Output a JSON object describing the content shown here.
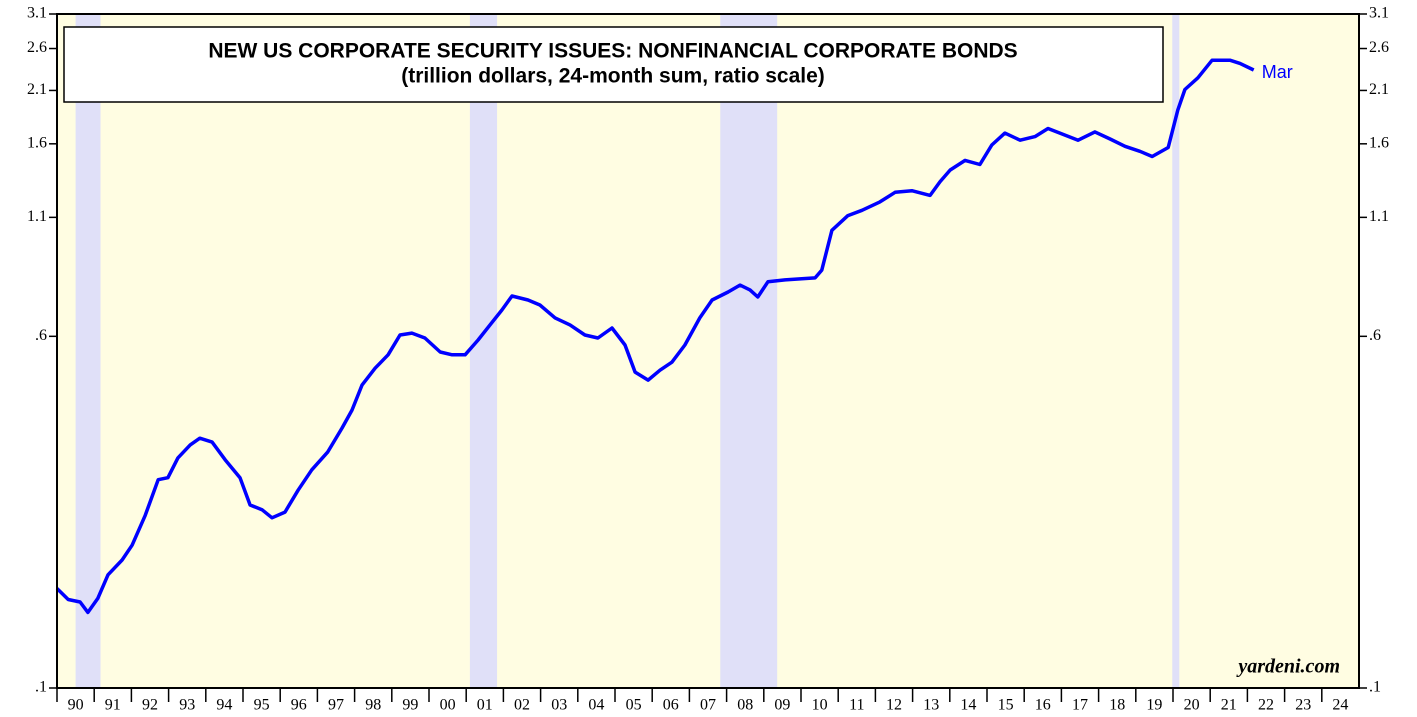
{
  "chart_data": {
    "type": "line",
    "title": "NEW US CORPORATE SECURITY ISSUES: NONFINANCIAL CORPORATE BONDS",
    "subtitle": "(trillion dollars, 24-month sum, ratio scale)",
    "log_scale": true,
    "background": "#fffde2",
    "recession_color": "#e0e0f8",
    "recessions": [
      [
        1990.5,
        1991.17
      ],
      [
        2001.1,
        2001.83
      ],
      [
        2007.83,
        2009.36
      ],
      [
        2019.98,
        2020.17
      ]
    ],
    "xlim": [
      1990,
      2025
    ],
    "xticks": [
      {
        "value": 1990,
        "label": "90"
      },
      {
        "value": 1991,
        "label": "91"
      },
      {
        "value": 1992,
        "label": "92"
      },
      {
        "value": 1993,
        "label": "93"
      },
      {
        "value": 1994,
        "label": "94"
      },
      {
        "value": 1995,
        "label": "95"
      },
      {
        "value": 1996,
        "label": "96"
      },
      {
        "value": 1997,
        "label": "97"
      },
      {
        "value": 1998,
        "label": "98"
      },
      {
        "value": 1999,
        "label": "99"
      },
      {
        "value": 2000,
        "label": "00"
      },
      {
        "value": 2001,
        "label": "01"
      },
      {
        "value": 2002,
        "label": "02"
      },
      {
        "value": 2003,
        "label": "03"
      },
      {
        "value": 2004,
        "label": "04"
      },
      {
        "value": 2005,
        "label": "05"
      },
      {
        "value": 2006,
        "label": "06"
      },
      {
        "value": 2007,
        "label": "07"
      },
      {
        "value": 2008,
        "label": "08"
      },
      {
        "value": 2009,
        "label": "09"
      },
      {
        "value": 2010,
        "label": "10"
      },
      {
        "value": 2011,
        "label": "11"
      },
      {
        "value": 2012,
        "label": "12"
      },
      {
        "value": 2013,
        "label": "13"
      },
      {
        "value": 2014,
        "label": "14"
      },
      {
        "value": 2015,
        "label": "15"
      },
      {
        "value": 2016,
        "label": "16"
      },
      {
        "value": 2017,
        "label": "17"
      },
      {
        "value": 2018,
        "label": "18"
      },
      {
        "value": 2019,
        "label": "19"
      },
      {
        "value": 2020,
        "label": "20"
      },
      {
        "value": 2021,
        "label": "21"
      },
      {
        "value": 2022,
        "label": "22"
      },
      {
        "value": 2023,
        "label": "23"
      },
      {
        "value": 2024,
        "label": "24"
      }
    ],
    "ylim": [
      0.1,
      3.1
    ],
    "yticks": [
      {
        "value": 0.1,
        "label": ".1"
      },
      {
        "value": 0.6,
        "label": ".6"
      },
      1.1,
      1.6,
      2.1,
      2.6,
      3.1
    ],
    "series": [
      {
        "name": "Mar",
        "color": "#0000ff",
        "x": [
          1990.0,
          1990.3,
          1990.62,
          1990.83,
          1991.1,
          1991.37,
          1991.75,
          1992.02,
          1992.37,
          1992.72,
          1992.98,
          1993.25,
          1993.58,
          1993.84,
          1994.17,
          1994.52,
          1994.92,
          1995.19,
          1995.51,
          1995.78,
          1996.13,
          1996.48,
          1996.85,
          1997.28,
          1997.66,
          1997.93,
          1998.2,
          1998.55,
          1998.9,
          1999.22,
          1999.54,
          1999.89,
          2000.3,
          2000.62,
          2000.97,
          2001.32,
          2001.64,
          2001.96,
          2002.23,
          2002.66,
          2002.98,
          2003.39,
          2003.79,
          2004.19,
          2004.54,
          2004.92,
          2005.27,
          2005.54,
          2005.89,
          2006.21,
          2006.53,
          2006.88,
          2007.28,
          2007.61,
          2008.04,
          2008.36,
          2008.63,
          2008.84,
          2009.11,
          2009.57,
          2009.97,
          2010.38,
          2010.56,
          2010.83,
          2011.26,
          2011.64,
          2012.12,
          2012.53,
          2012.98,
          2013.47,
          2013.74,
          2014.01,
          2014.41,
          2014.81,
          2015.13,
          2015.48,
          2015.89,
          2016.29,
          2016.64,
          2016.96,
          2017.45,
          2017.9,
          2018.31,
          2018.71,
          2019.11,
          2019.44,
          2019.87,
          2020.13,
          2020.32,
          2020.67,
          2021.05,
          2021.53,
          2021.8,
          2022.17
        ],
        "values": [
          0.166,
          0.157,
          0.155,
          0.147,
          0.158,
          0.178,
          0.192,
          0.207,
          0.241,
          0.289,
          0.292,
          0.323,
          0.345,
          0.357,
          0.35,
          0.32,
          0.292,
          0.254,
          0.248,
          0.238,
          0.245,
          0.274,
          0.304,
          0.333,
          0.376,
          0.412,
          0.468,
          0.51,
          0.546,
          0.604,
          0.61,
          0.595,
          0.554,
          0.546,
          0.546,
          0.589,
          0.636,
          0.686,
          0.737,
          0.722,
          0.704,
          0.659,
          0.636,
          0.604,
          0.595,
          0.626,
          0.574,
          0.5,
          0.48,
          0.505,
          0.526,
          0.574,
          0.659,
          0.722,
          0.752,
          0.779,
          0.76,
          0.733,
          0.792,
          0.8,
          0.804,
          0.808,
          0.841,
          1.03,
          1.11,
          1.14,
          1.19,
          1.25,
          1.26,
          1.23,
          1.32,
          1.4,
          1.47,
          1.44,
          1.59,
          1.69,
          1.63,
          1.66,
          1.73,
          1.69,
          1.63,
          1.7,
          1.64,
          1.58,
          1.54,
          1.5,
          1.57,
          1.9,
          2.11,
          2.24,
          2.45,
          2.45,
          2.41,
          2.33
        ]
      }
    ],
    "annotation": "yardeni.com"
  }
}
